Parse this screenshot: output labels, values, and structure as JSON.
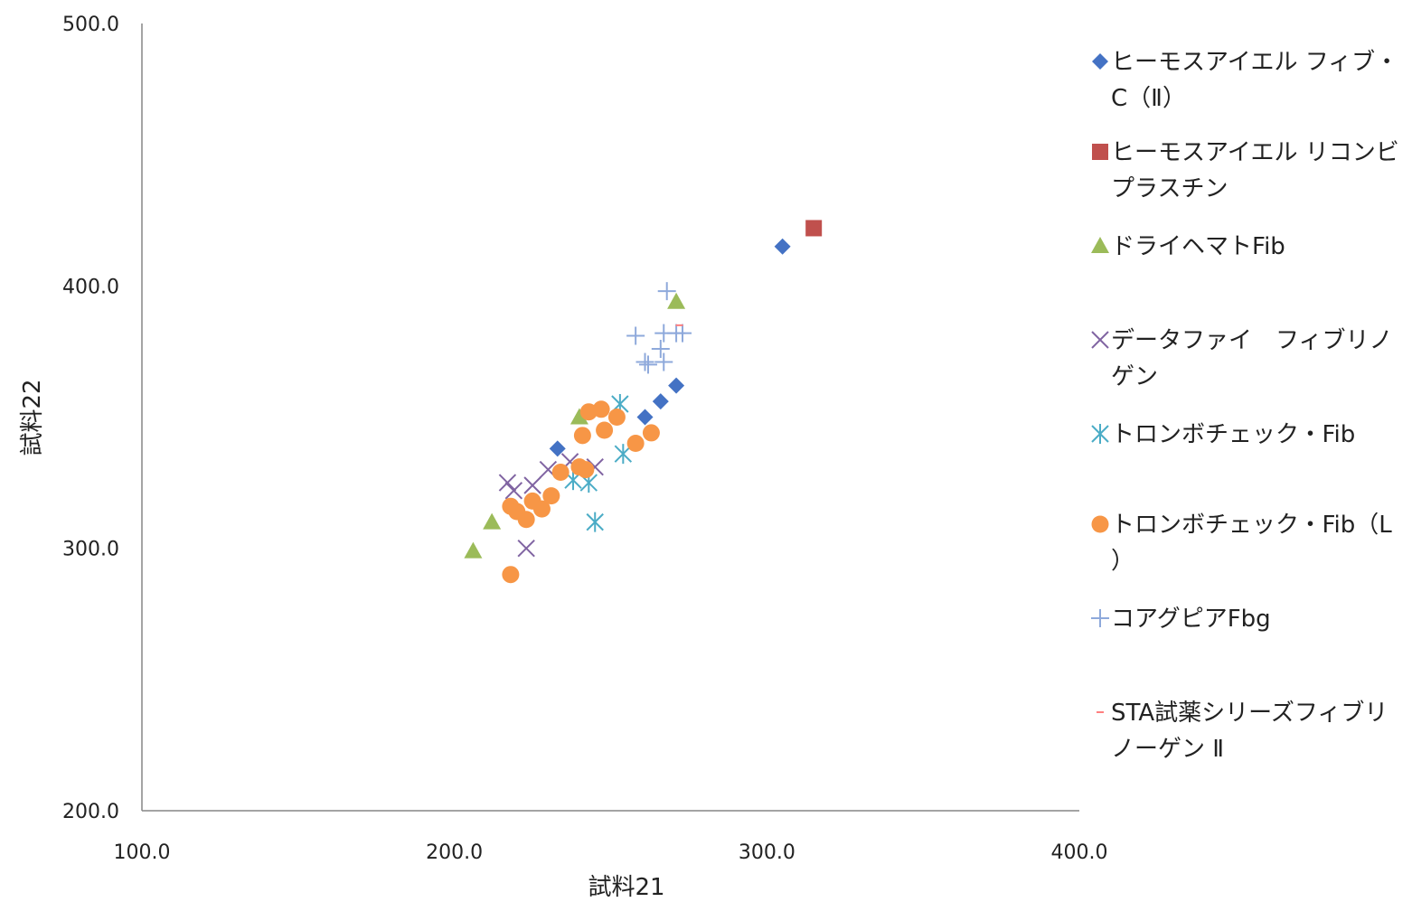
{
  "chart_data": {
    "type": "scatter",
    "xlabel": "試料21",
    "ylabel": "試料22",
    "xlim": [
      100.0,
      400.0
    ],
    "ylim": [
      200.0,
      500.0
    ],
    "x_ticks": [
      "100.0",
      "200.0",
      "300.0",
      "400.0"
    ],
    "y_ticks": [
      "200.0",
      "300.0",
      "400.0",
      "500.0"
    ],
    "grid": false,
    "legend_position": "right",
    "series": [
      {
        "name": "ヒーモスアイエル フィブ・C（Ⅱ）",
        "marker": "diamond",
        "color": "#4472C4",
        "points": [
          [
            233,
            338
          ],
          [
            261,
            350
          ],
          [
            266,
            356
          ],
          [
            271,
            362
          ],
          [
            305,
            415
          ]
        ]
      },
      {
        "name": "ヒーモスアイエル リコンビプラスチン",
        "marker": "square",
        "color": "#C0504D",
        "points": [
          [
            315,
            422
          ]
        ]
      },
      {
        "name": "ドライヘマトFib",
        "marker": "triangle",
        "color": "#9BBB59",
        "points": [
          [
            206,
            299
          ],
          [
            212,
            310
          ],
          [
            240,
            350
          ],
          [
            271,
            394
          ]
        ]
      },
      {
        "name": "データファイ　フィブリノゲン",
        "marker": "x",
        "color": "#8064A2",
        "points": [
          [
            217,
            325
          ],
          [
            219,
            322
          ],
          [
            223,
            300
          ],
          [
            225,
            324
          ],
          [
            230,
            330
          ],
          [
            237,
            333
          ],
          [
            245,
            331
          ]
        ]
      },
      {
        "name": "トロンボチェック・Fib",
        "marker": "asterisk",
        "color": "#4BACC6",
        "points": [
          [
            238,
            326
          ],
          [
            243,
            325
          ],
          [
            245,
            310
          ],
          [
            253,
            355
          ],
          [
            254,
            336
          ]
        ]
      },
      {
        "name": "トロンボチェック・Fib（L）",
        "marker": "circle",
        "color": "#F79646",
        "points": [
          [
            218,
            290
          ],
          [
            218,
            316
          ],
          [
            220,
            314
          ],
          [
            223,
            311
          ],
          [
            225,
            318
          ],
          [
            228,
            315
          ],
          [
            231,
            320
          ],
          [
            234,
            329
          ],
          [
            240,
            331
          ],
          [
            242,
            330
          ],
          [
            241,
            343
          ],
          [
            243,
            352
          ],
          [
            247,
            353
          ],
          [
            248,
            345
          ],
          [
            252,
            350
          ],
          [
            258,
            340
          ],
          [
            263,
            344
          ]
        ]
      },
      {
        "name": "コアグピアFbg",
        "marker": "plus",
        "color": "#8EA9DB",
        "points": [
          [
            258,
            381
          ],
          [
            261,
            371
          ],
          [
            262,
            370
          ],
          [
            266,
            376
          ],
          [
            267,
            371
          ],
          [
            267,
            382
          ],
          [
            268,
            398
          ],
          [
            271,
            382
          ],
          [
            273,
            382
          ]
        ]
      },
      {
        "name": "STA試薬シリーズフィブリノーゲン Ⅱ",
        "marker": "dash",
        "color": "#FF7F7F",
        "points": [
          [
            272,
            385
          ]
        ]
      }
    ]
  }
}
